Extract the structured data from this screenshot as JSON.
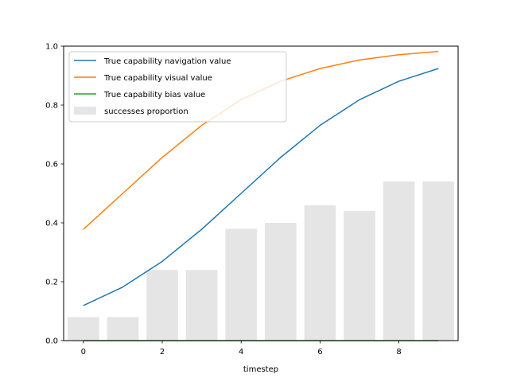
{
  "chart_data": {
    "type": "bar",
    "title": "",
    "xlabel": "timestep",
    "ylabel": "",
    "xlim": [
      -0.5,
      9.5
    ],
    "ylim": [
      0,
      1.0
    ],
    "xticks": [
      0,
      2,
      4,
      6,
      8
    ],
    "yticks": [
      0.0,
      0.2,
      0.4,
      0.6,
      0.8,
      1.0
    ],
    "grid": false,
    "legend_position": "top-left",
    "x": [
      0,
      1,
      2,
      3,
      4,
      5,
      6,
      7,
      8,
      9
    ],
    "series": [
      {
        "name": "True capability navigation value",
        "kind": "line",
        "color": "#1f77b4",
        "values": [
          0.119,
          0.182,
          0.269,
          0.378,
          0.5,
          0.622,
          0.731,
          0.818,
          0.881,
          0.924
        ]
      },
      {
        "name": "True capability visual value",
        "kind": "line",
        "color": "#ff7f0e",
        "values": [
          0.378,
          0.5,
          0.622,
          0.731,
          0.818,
          0.881,
          0.924,
          0.953,
          0.971,
          0.982
        ]
      },
      {
        "name": "True capability bias value",
        "kind": "line",
        "color": "#2ca02c",
        "values": [
          0,
          0,
          0,
          0,
          0,
          0,
          0,
          0,
          0,
          0
        ]
      },
      {
        "name": "successes proportion",
        "kind": "bar",
        "color": "#e5e5e5",
        "values": [
          0.08,
          0.08,
          0.24,
          0.24,
          0.38,
          0.4,
          0.46,
          0.44,
          0.54,
          0.54
        ]
      }
    ]
  }
}
